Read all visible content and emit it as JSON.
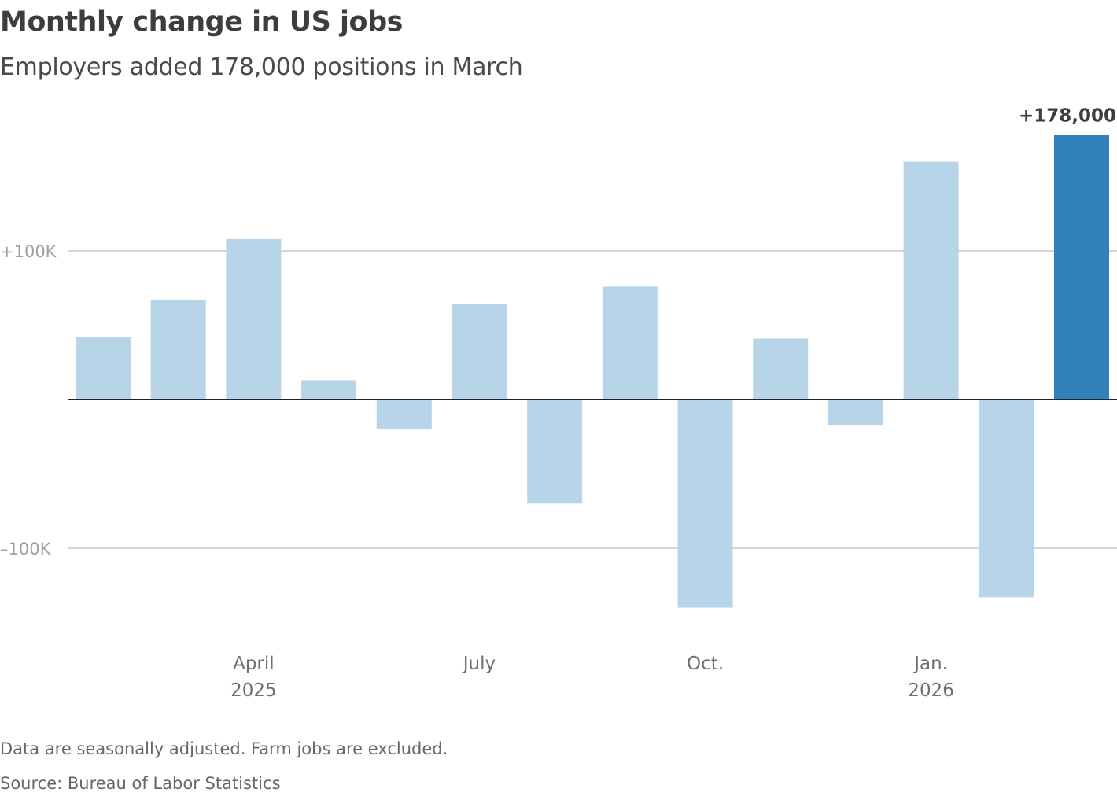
{
  "title": "Monthly change in US jobs",
  "subtitle": "Employers added 178,000 positions in March",
  "note": "Data are seasonally adjusted. Farm jobs are excluded.",
  "source": "Source: Bureau of Labor Statistics",
  "chart_data": {
    "type": "bar",
    "categories": [
      "Feb 2025",
      "Mar 2025",
      "Apr 2025",
      "May 2025",
      "Jun 2025",
      "Jul 2025",
      "Aug 2025",
      "Sep 2025",
      "Oct 2025",
      "Nov 2025",
      "Dec 2025",
      "Jan 2026",
      "Feb 2026",
      "Mar 2026"
    ],
    "values": [
      42000,
      67000,
      108000,
      13000,
      -20000,
      64000,
      -70000,
      76000,
      -140000,
      41000,
      -17000,
      160000,
      -133000,
      178000
    ],
    "ylim": [
      -160000,
      190000
    ],
    "y_ticks": [
      {
        "value": 100000,
        "label": "+100K"
      },
      {
        "value": -100000,
        "label": "–100K"
      }
    ],
    "x_ticks": [
      {
        "index": 2,
        "label": "April",
        "year": "2025"
      },
      {
        "index": 5,
        "label": "July",
        "year": ""
      },
      {
        "index": 8,
        "label": "Oct.",
        "year": ""
      },
      {
        "index": 11,
        "label": "Jan.",
        "year": "2026"
      }
    ],
    "annotation": {
      "index": 13,
      "label": "+178,000"
    },
    "grid": true,
    "colors": {
      "bar": "#b8d4e8",
      "highlight": "#3080bc",
      "zero_line": "#222222",
      "grid": "#c8c8c8"
    }
  }
}
